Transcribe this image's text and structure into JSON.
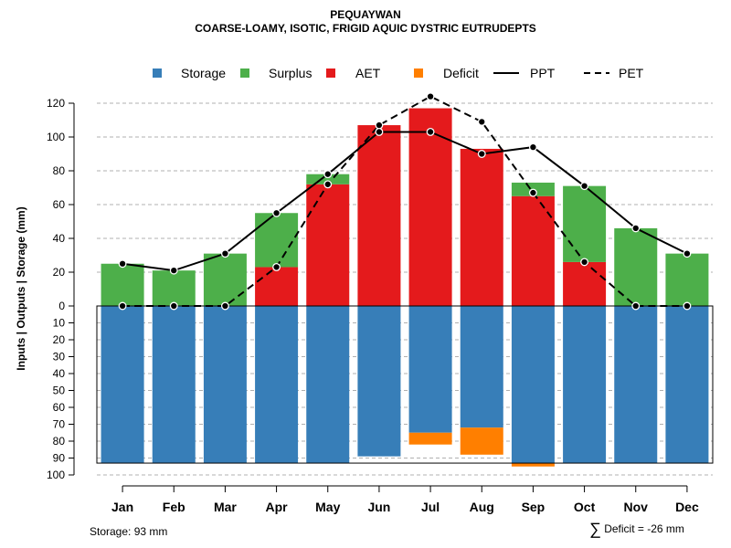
{
  "title": "PEQUAYWAN",
  "subtitle": "COARSE-LOAMY, ISOTIC, FRIGID AQUIC DYSTRIC EUTRUDEPTS",
  "legend": [
    {
      "label": "Storage",
      "kind": "square",
      "color": "#377eb8"
    },
    {
      "label": "Surplus",
      "kind": "square",
      "color": "#4daf4a"
    },
    {
      "label": "AET",
      "kind": "square",
      "color": "#e41a1c"
    },
    {
      "label": "Deficit",
      "kind": "square",
      "color": "#ff7f00"
    },
    {
      "label": "PPT",
      "kind": "solid-line",
      "color": "#000000"
    },
    {
      "label": "PET",
      "kind": "dashed-line",
      "color": "#000000"
    }
  ],
  "footer": {
    "storage_text": "Storage: 93 mm",
    "deficit_symbol": "∑",
    "deficit_text": "Deficit = -26 mm"
  },
  "chart_data": {
    "type": "bar",
    "ylabel": "Inputs | Outputs | Storage    (mm)",
    "ylim_top": [
      0,
      130
    ],
    "yticks_top": [
      0,
      20,
      40,
      60,
      80,
      100,
      120
    ],
    "ylim_bottom": [
      0,
      100
    ],
    "yticks_bottom": [
      0,
      10,
      20,
      30,
      40,
      50,
      60,
      70,
      80,
      90,
      100
    ],
    "ytick_labels_top": [
      "0",
      "20",
      "40",
      "60",
      "80",
      "100",
      "120"
    ],
    "ytick_labels_bottom": [
      "0",
      "10",
      "20",
      "30",
      "40",
      "50",
      "60",
      "70",
      "80",
      "90",
      "100"
    ],
    "categories": [
      "Jan",
      "Feb",
      "Mar",
      "Apr",
      "May",
      "Jun",
      "Jul",
      "Aug",
      "Sep",
      "Oct",
      "Nov",
      "Dec"
    ],
    "storage_capacity": 93,
    "colors": {
      "storage": "#377eb8",
      "surplus": "#4daf4a",
      "aet": "#e41a1c",
      "deficit": "#ff7f00",
      "grid": "#b0b0b0"
    },
    "series": [
      {
        "name": "AET",
        "values": [
          0,
          0,
          0,
          23,
          72,
          107,
          117,
          93,
          65,
          26,
          0,
          0
        ]
      },
      {
        "name": "Surplus",
        "values": [
          25,
          21,
          31,
          32,
          6,
          0,
          0,
          0,
          8,
          45,
          46,
          31
        ]
      },
      {
        "name": "Storage",
        "values": [
          93,
          93,
          93,
          93,
          93,
          89,
          75,
          72,
          93,
          93,
          93,
          93
        ]
      },
      {
        "name": "Deficit",
        "values": [
          0,
          0,
          0,
          0,
          0,
          0,
          7,
          16,
          2,
          0,
          0,
          0
        ]
      },
      {
        "name": "PPT",
        "values": [
          25,
          21,
          31,
          55,
          78,
          103,
          103,
          90,
          94,
          71,
          46,
          31
        ]
      },
      {
        "name": "PET",
        "values": [
          0,
          0,
          0,
          23,
          72,
          107,
          124,
          109,
          67,
          26,
          0,
          0
        ]
      }
    ]
  }
}
